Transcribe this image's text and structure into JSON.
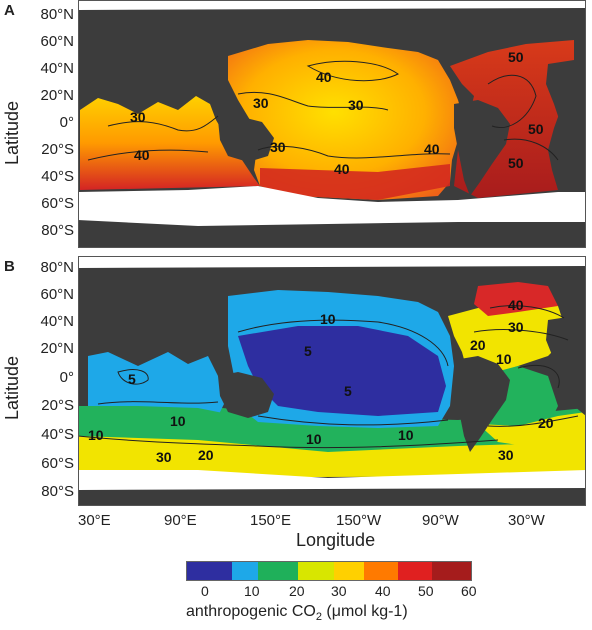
{
  "panel_a": {
    "letter": "A",
    "lat_ticks": [
      "80°N",
      "60°N",
      "40°N",
      "20°N",
      "0°",
      "20°S",
      "40°S",
      "60°S",
      "80°S"
    ],
    "contour_labels": [
      "40",
      "30",
      "30",
      "30",
      "30",
      "40",
      "40",
      "40",
      "50",
      "50",
      "50"
    ]
  },
  "panel_b": {
    "letter": "B",
    "lat_ticks": [
      "80°N",
      "60°N",
      "40°N",
      "20°N",
      "0°",
      "20°S",
      "40°S",
      "60°S",
      "80°S"
    ],
    "contour_labels": [
      "10",
      "5",
      "5",
      "5",
      "10",
      "10",
      "10",
      "10",
      "20",
      "30",
      "40",
      "30",
      "20",
      "10",
      "20",
      "30"
    ]
  },
  "y_axis_label": "Latitude",
  "x_axis": {
    "label": "Longitude",
    "ticks": [
      "30°E",
      "90°E",
      "150°E",
      "150°W",
      "90°W",
      "30°W"
    ]
  },
  "colorbar": {
    "ticks": [
      "0",
      "10",
      "20",
      "30",
      "40",
      "50",
      "60"
    ],
    "label_prefix": "anthropogenic CO",
    "label_sub": "2",
    "label_suffix": " (μmol kg-1)",
    "colors": [
      "#2e2ea0",
      "#1ea8e8",
      "#1fb05a",
      "#d8e600",
      "#ffd000",
      "#ff7a00",
      "#e02020",
      "#a51c1c"
    ]
  }
}
